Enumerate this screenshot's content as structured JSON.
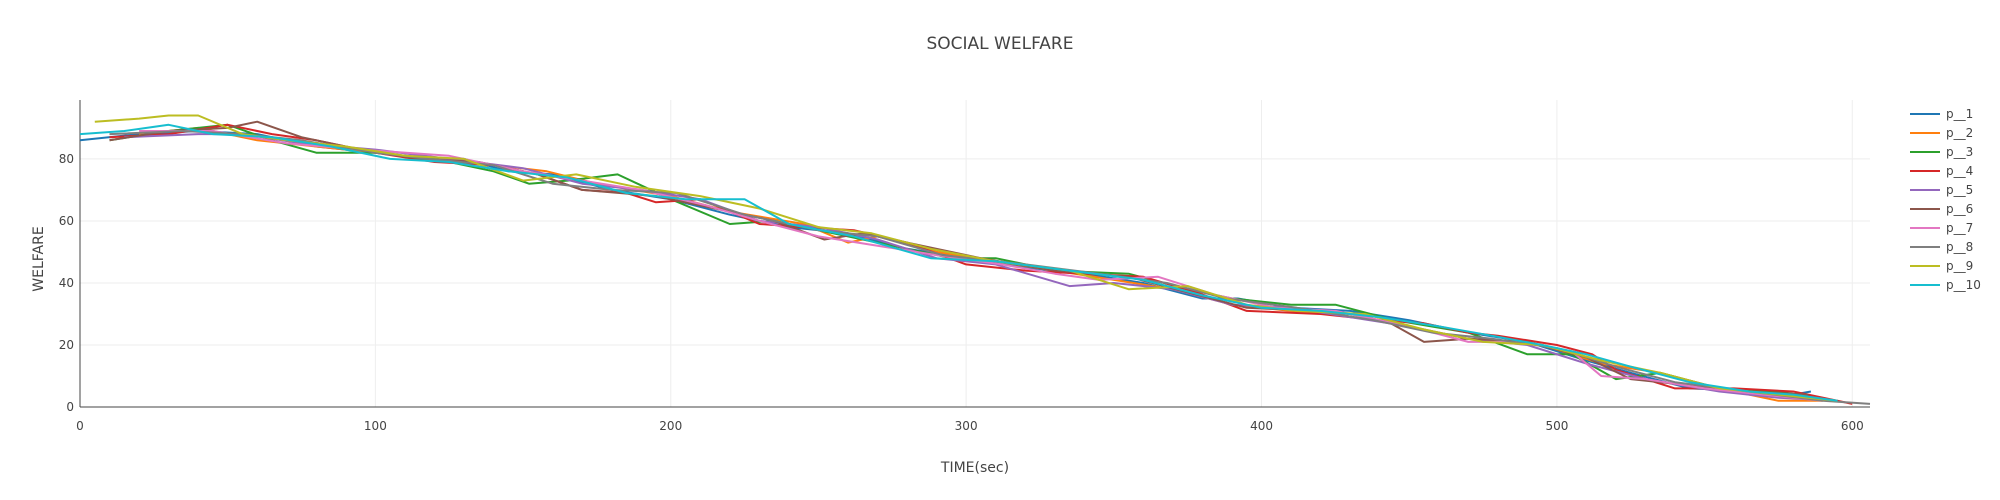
{
  "chart_data": {
    "type": "line",
    "title": "SOCIAL WELFARE",
    "xlabel": "TIME(sec)",
    "ylabel": "WELFARE",
    "xlim": [
      0,
      606
    ],
    "ylim": [
      0,
      99
    ],
    "xticks": [
      0,
      100,
      200,
      300,
      400,
      500,
      600
    ],
    "yticks": [
      0,
      20,
      40,
      60,
      80
    ],
    "grid": true,
    "legend": "right",
    "series": [
      {
        "name": "p__1",
        "color": "#1f77b4",
        "points": [
          [
            0,
            86
          ],
          [
            20,
            88
          ],
          [
            40,
            89
          ],
          [
            60,
            88
          ],
          [
            80,
            84
          ],
          [
            100,
            82
          ],
          [
            115,
            80
          ],
          [
            130,
            80
          ],
          [
            145,
            76
          ],
          [
            160,
            75
          ],
          [
            180,
            70
          ],
          [
            200,
            67
          ],
          [
            220,
            62
          ],
          [
            240,
            58
          ],
          [
            260,
            56
          ],
          [
            280,
            51
          ],
          [
            300,
            48
          ],
          [
            320,
            45
          ],
          [
            340,
            43
          ],
          [
            360,
            40
          ],
          [
            380,
            35
          ],
          [
            392,
            35
          ],
          [
            410,
            32
          ],
          [
            430,
            31
          ],
          [
            450,
            28
          ],
          [
            470,
            24
          ],
          [
            490,
            21
          ],
          [
            510,
            15
          ],
          [
            525,
            11
          ],
          [
            545,
            6
          ],
          [
            570,
            5
          ],
          [
            580,
            4
          ],
          [
            586,
            5
          ]
        ]
      },
      {
        "name": "p__2",
        "color": "#ff7f0e",
        "points": [
          [
            20,
            88
          ],
          [
            40,
            90
          ],
          [
            60,
            86
          ],
          [
            80,
            84
          ],
          [
            100,
            82
          ],
          [
            120,
            80
          ],
          [
            140,
            78
          ],
          [
            158,
            76
          ],
          [
            175,
            72
          ],
          [
            200,
            68
          ],
          [
            220,
            63
          ],
          [
            245,
            59
          ],
          [
            260,
            53
          ],
          [
            270,
            55
          ],
          [
            290,
            50
          ],
          [
            310,
            47
          ],
          [
            330,
            44
          ],
          [
            350,
            41
          ],
          [
            370,
            38
          ],
          [
            390,
            33
          ],
          [
            410,
            31
          ],
          [
            430,
            30
          ],
          [
            455,
            25
          ],
          [
            470,
            22
          ],
          [
            495,
            20
          ],
          [
            515,
            14
          ],
          [
            535,
            11
          ],
          [
            555,
            6
          ],
          [
            575,
            2
          ],
          [
            590,
            2
          ]
        ]
      },
      {
        "name": "p__3",
        "color": "#2ca02c",
        "points": [
          [
            10,
            86
          ],
          [
            30,
            89
          ],
          [
            50,
            91
          ],
          [
            65,
            86
          ],
          [
            80,
            82
          ],
          [
            100,
            82
          ],
          [
            120,
            80
          ],
          [
            140,
            76
          ],
          [
            152,
            72
          ],
          [
            165,
            73
          ],
          [
            182,
            75
          ],
          [
            200,
            67
          ],
          [
            220,
            59
          ],
          [
            235,
            60
          ],
          [
            255,
            56
          ],
          [
            275,
            52
          ],
          [
            295,
            48
          ],
          [
            310,
            48
          ],
          [
            330,
            44
          ],
          [
            355,
            43
          ],
          [
            375,
            38
          ],
          [
            390,
            35
          ],
          [
            410,
            33
          ],
          [
            425,
            33
          ],
          [
            445,
            28
          ],
          [
            470,
            24
          ],
          [
            490,
            17
          ],
          [
            505,
            17
          ],
          [
            520,
            9
          ],
          [
            535,
            11
          ],
          [
            555,
            6
          ],
          [
            575,
            5
          ],
          [
            588,
            3
          ]
        ]
      },
      {
        "name": "p__4",
        "color": "#d62728",
        "points": [
          [
            10,
            87
          ],
          [
            30,
            88
          ],
          [
            50,
            91
          ],
          [
            65,
            88
          ],
          [
            80,
            86
          ],
          [
            100,
            82
          ],
          [
            120,
            79
          ],
          [
            140,
            78
          ],
          [
            155,
            75
          ],
          [
            170,
            70
          ],
          [
            185,
            69
          ],
          [
            195,
            66
          ],
          [
            210,
            67
          ],
          [
            230,
            59
          ],
          [
            245,
            58
          ],
          [
            262,
            57
          ],
          [
            280,
            53
          ],
          [
            300,
            46
          ],
          [
            320,
            44
          ],
          [
            340,
            43
          ],
          [
            360,
            42
          ],
          [
            378,
            37
          ],
          [
            395,
            31
          ],
          [
            420,
            30
          ],
          [
            440,
            28
          ],
          [
            455,
            27
          ],
          [
            470,
            24
          ],
          [
            480,
            23
          ],
          [
            500,
            20
          ],
          [
            512,
            17
          ],
          [
            520,
            12
          ],
          [
            540,
            6
          ],
          [
            560,
            6
          ],
          [
            580,
            5
          ],
          [
            600,
            1
          ]
        ]
      },
      {
        "name": "p__5",
        "color": "#9467bd",
        "points": [
          [
            15,
            87
          ],
          [
            40,
            88
          ],
          [
            55,
            88
          ],
          [
            75,
            85
          ],
          [
            100,
            83
          ],
          [
            125,
            80
          ],
          [
            150,
            77
          ],
          [
            170,
            72
          ],
          [
            190,
            70
          ],
          [
            210,
            67
          ],
          [
            230,
            60
          ],
          [
            250,
            58
          ],
          [
            270,
            54
          ],
          [
            290,
            48
          ],
          [
            310,
            46
          ],
          [
            335,
            39
          ],
          [
            350,
            40
          ],
          [
            370,
            38
          ],
          [
            390,
            33
          ],
          [
            410,
            32
          ],
          [
            430,
            29
          ],
          [
            450,
            26
          ],
          [
            470,
            22
          ],
          [
            490,
            20
          ],
          [
            510,
            14
          ],
          [
            530,
            9
          ],
          [
            555,
            5
          ],
          [
            575,
            3
          ],
          [
            595,
            2
          ]
        ]
      },
      {
        "name": "p__6",
        "color": "#8c564b",
        "points": [
          [
            10,
            86
          ],
          [
            30,
            89
          ],
          [
            50,
            90
          ],
          [
            60,
            92
          ],
          [
            75,
            87
          ],
          [
            95,
            83
          ],
          [
            115,
            80
          ],
          [
            135,
            79
          ],
          [
            155,
            75
          ],
          [
            170,
            70
          ],
          [
            195,
            68
          ],
          [
            215,
            64
          ],
          [
            235,
            60
          ],
          [
            252,
            54
          ],
          [
            265,
            56
          ],
          [
            285,
            52
          ],
          [
            305,
            48
          ],
          [
            330,
            44
          ],
          [
            355,
            42
          ],
          [
            375,
            37
          ],
          [
            395,
            32
          ],
          [
            420,
            31
          ],
          [
            440,
            29
          ],
          [
            455,
            21
          ],
          [
            470,
            22
          ],
          [
            490,
            21
          ],
          [
            510,
            16
          ],
          [
            525,
            9
          ],
          [
            545,
            7
          ],
          [
            565,
            5
          ],
          [
            585,
            4
          ]
        ]
      },
      {
        "name": "p__7",
        "color": "#e377c2",
        "points": [
          [
            20,
            89
          ],
          [
            45,
            89
          ],
          [
            70,
            85
          ],
          [
            95,
            83
          ],
          [
            125,
            81
          ],
          [
            150,
            76
          ],
          [
            170,
            73
          ],
          [
            190,
            70
          ],
          [
            212,
            65
          ],
          [
            230,
            60
          ],
          [
            250,
            55
          ],
          [
            270,
            52
          ],
          [
            290,
            49
          ],
          [
            312,
            46
          ],
          [
            330,
            43
          ],
          [
            345,
            41
          ],
          [
            365,
            42
          ],
          [
            385,
            36
          ],
          [
            405,
            32
          ],
          [
            425,
            31
          ],
          [
            450,
            26
          ],
          [
            470,
            21
          ],
          [
            488,
            21
          ],
          [
            505,
            18
          ],
          [
            515,
            10
          ],
          [
            530,
            9
          ],
          [
            550,
            6
          ],
          [
            570,
            4
          ],
          [
            590,
            2
          ]
        ]
      },
      {
        "name": "p__8",
        "color": "#7f7f7f",
        "points": [
          [
            10,
            88
          ],
          [
            35,
            89
          ],
          [
            55,
            88
          ],
          [
            75,
            86
          ],
          [
            100,
            82
          ],
          [
            118,
            80
          ],
          [
            140,
            78
          ],
          [
            160,
            72
          ],
          [
            180,
            70
          ],
          [
            202,
            69
          ],
          [
            225,
            62
          ],
          [
            250,
            57
          ],
          [
            270,
            55
          ],
          [
            292,
            49
          ],
          [
            320,
            46
          ],
          [
            345,
            43
          ],
          [
            368,
            40
          ],
          [
            388,
            35
          ],
          [
            412,
            32
          ],
          [
            438,
            28
          ],
          [
            458,
            24
          ],
          [
            478,
            22
          ],
          [
            500,
            19
          ],
          [
            520,
            13
          ],
          [
            540,
            8
          ],
          [
            565,
            5
          ],
          [
            590,
            2
          ],
          [
            606,
            1
          ]
        ]
      },
      {
        "name": "p__9",
        "color": "#bcbd22",
        "points": [
          [
            5,
            92
          ],
          [
            20,
            93
          ],
          [
            30,
            94
          ],
          [
            40,
            94
          ],
          [
            55,
            88
          ],
          [
            70,
            86
          ],
          [
            90,
            84
          ],
          [
            110,
            81
          ],
          [
            130,
            80
          ],
          [
            150,
            73
          ],
          [
            168,
            75
          ],
          [
            188,
            71
          ],
          [
            210,
            68
          ],
          [
            230,
            64
          ],
          [
            250,
            58
          ],
          [
            268,
            56
          ],
          [
            288,
            51
          ],
          [
            310,
            47
          ],
          [
            335,
            44
          ],
          [
            355,
            38
          ],
          [
            375,
            39
          ],
          [
            395,
            33
          ],
          [
            412,
            31
          ],
          [
            435,
            30
          ],
          [
            455,
            25
          ],
          [
            475,
            21
          ],
          [
            495,
            20
          ],
          [
            515,
            15
          ],
          [
            535,
            11
          ],
          [
            555,
            6
          ],
          [
            575,
            4
          ],
          [
            595,
            2
          ]
        ]
      },
      {
        "name": "p__10",
        "color": "#17becf",
        "points": [
          [
            0,
            88
          ],
          [
            15,
            89
          ],
          [
            30,
            91
          ],
          [
            45,
            88
          ],
          [
            65,
            87
          ],
          [
            85,
            84
          ],
          [
            105,
            80
          ],
          [
            125,
            79
          ],
          [
            145,
            76
          ],
          [
            165,
            74
          ],
          [
            185,
            69
          ],
          [
            205,
            67
          ],
          [
            225,
            67
          ],
          [
            240,
            59
          ],
          [
            262,
            55
          ],
          [
            288,
            48
          ],
          [
            310,
            47
          ],
          [
            335,
            44
          ],
          [
            360,
            41
          ],
          [
            380,
            36
          ],
          [
            400,
            32
          ],
          [
            420,
            31
          ],
          [
            440,
            29
          ],
          [
            460,
            26
          ],
          [
            478,
            23
          ],
          [
            495,
            20
          ],
          [
            510,
            17
          ],
          [
            525,
            13
          ],
          [
            545,
            8
          ],
          [
            565,
            5
          ],
          [
            580,
            4
          ],
          [
            595,
            2
          ]
        ]
      }
    ]
  }
}
